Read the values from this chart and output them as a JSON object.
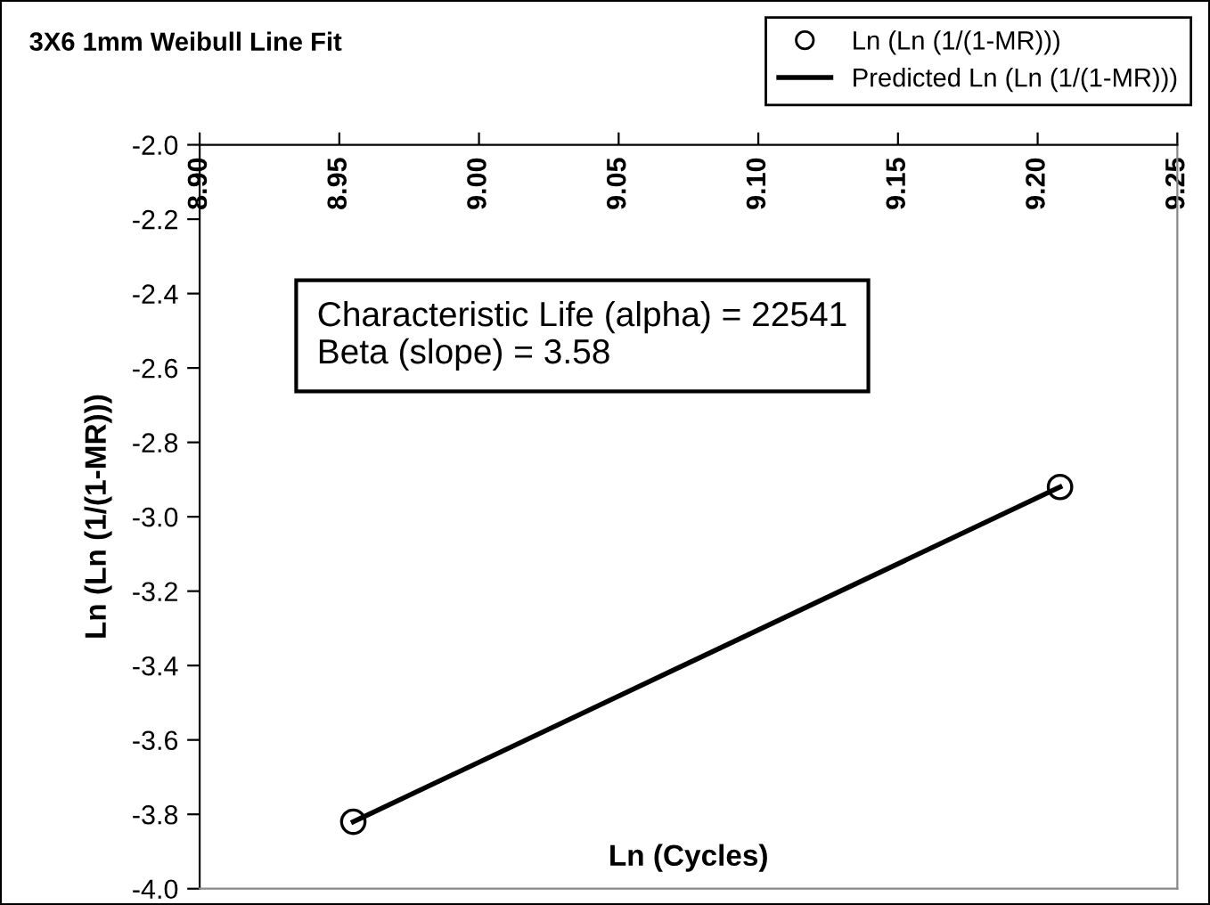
{
  "chart_data": {
    "type": "scatter",
    "title": "3X6 1mm Weibull Line Fit",
    "xlabel": "Ln (Cycles)",
    "ylabel": "Ln (Ln (1/(1-MR)))",
    "xlim": [
      8.9,
      9.25
    ],
    "xticks": [
      {
        "value": 8.9,
        "label": "8.90"
      },
      {
        "value": 8.95,
        "label": "8.95"
      },
      {
        "value": 9.0,
        "label": "9.00"
      },
      {
        "value": 9.05,
        "label": "9.05"
      },
      {
        "value": 9.1,
        "label": "9.10"
      },
      {
        "value": 9.15,
        "label": "9.15"
      },
      {
        "value": 9.2,
        "label": "9.20"
      },
      {
        "value": 9.25,
        "label": "9.25"
      }
    ],
    "ylim": [
      -4.0,
      -2.0
    ],
    "yticks": [
      {
        "value": -4.0,
        "label": "-4.0"
      },
      {
        "value": -3.8,
        "label": "-3.8"
      },
      {
        "value": -3.6,
        "label": "-3.6"
      },
      {
        "value": -3.4,
        "label": "-3.4"
      },
      {
        "value": -3.2,
        "label": "-3.2"
      },
      {
        "value": -3.0,
        "label": "-3.0"
      },
      {
        "value": -2.8,
        "label": "-2.8"
      },
      {
        "value": -2.6,
        "label": "-2.6"
      },
      {
        "value": -2.4,
        "label": "-2.4"
      },
      {
        "value": -2.2,
        "label": "-2.2"
      },
      {
        "value": -2.0,
        "label": "-2.0"
      }
    ],
    "x": [
      8.955,
      9.208
    ],
    "series": [
      {
        "name": "Ln (Ln (1/(1-MR)))",
        "marker": "circle",
        "color": "#000000",
        "values": [
          -3.82,
          -2.92
        ]
      },
      {
        "name": "Predicted Ln (Ln (1/(1-MR)))",
        "type": "line",
        "marker": "none",
        "line_style": "solid",
        "color": "#000000",
        "values": [
          -3.82,
          -2.92
        ]
      }
    ],
    "annotations": [
      "Characteristic Life (alpha) = 22541",
      "Beta (slope) = 3.58"
    ],
    "legend": "top right",
    "grid": false
  }
}
